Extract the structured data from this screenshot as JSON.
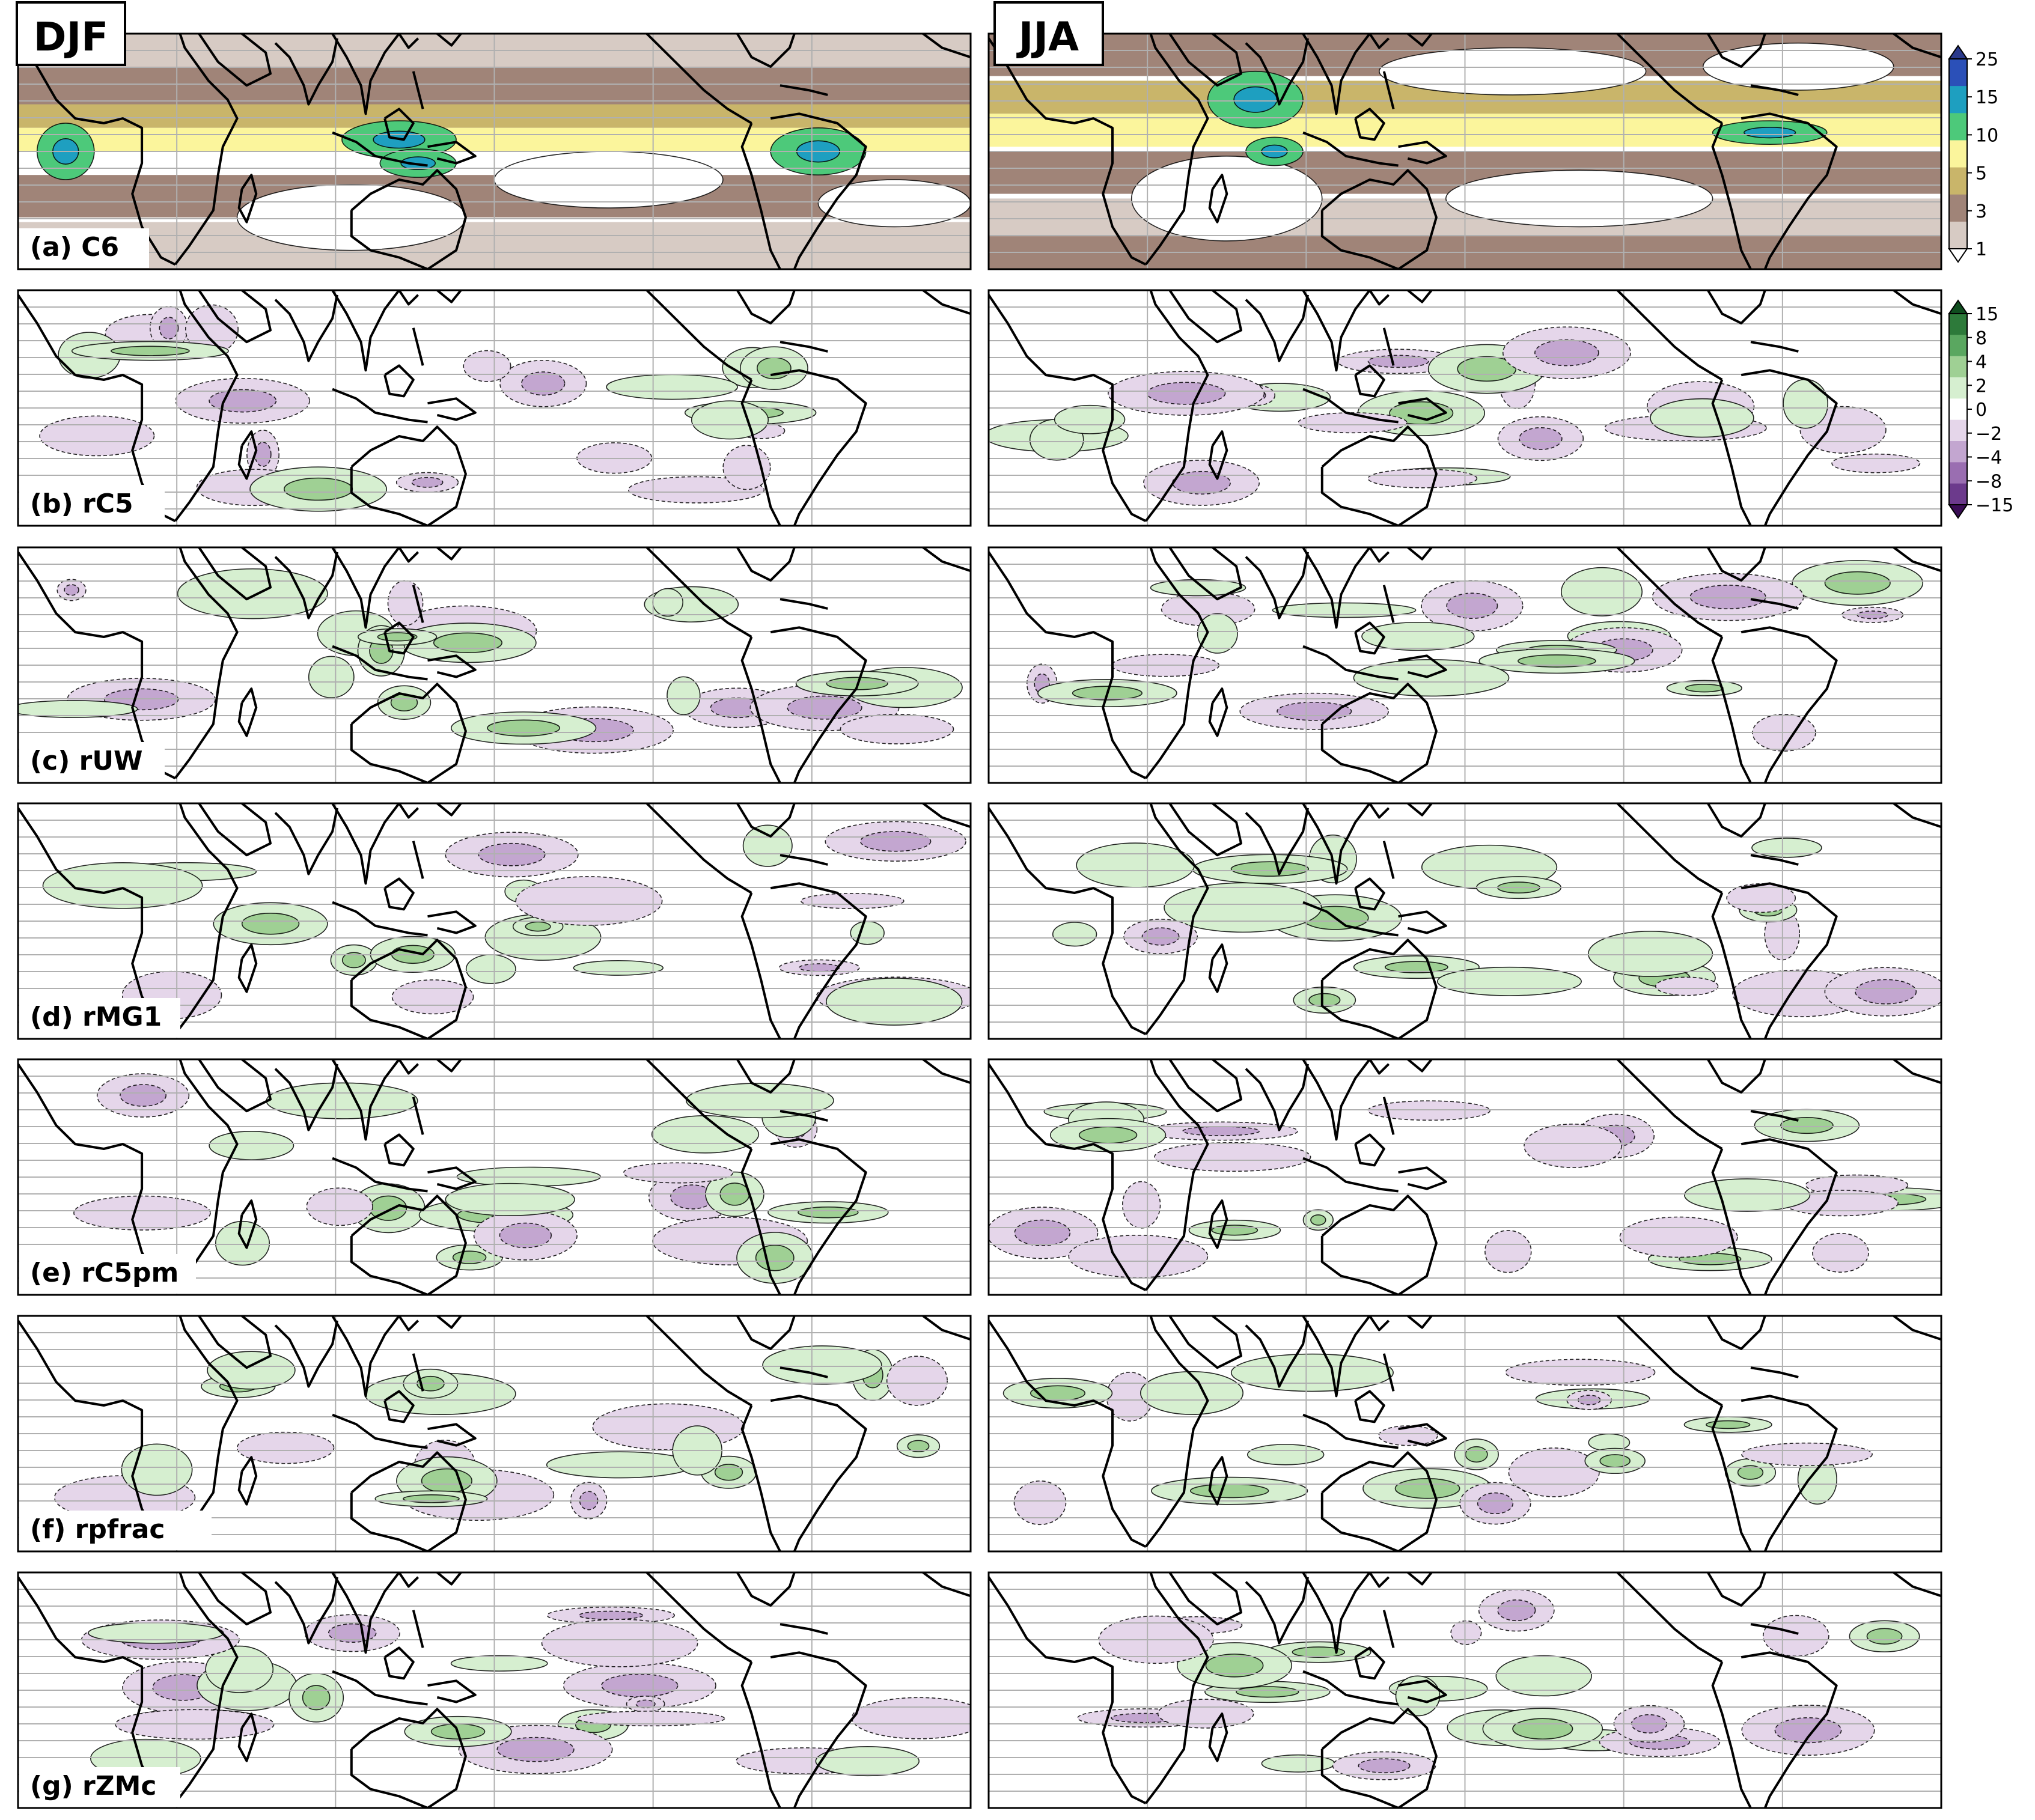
{
  "seasons": [
    "DJF",
    "JJA"
  ],
  "panels": [
    {
      "label": "(a) C6",
      "kind": "absolute"
    },
    {
      "label": "(b) rC5",
      "kind": "difference"
    },
    {
      "label": "(c) rUW",
      "kind": "difference"
    },
    {
      "label": "(d) rMG1",
      "kind": "difference"
    },
    {
      "label": "(e) rC5pm",
      "kind": "difference"
    },
    {
      "label": "(f) rpfrac",
      "kind": "difference"
    },
    {
      "label": "(g) rZMc",
      "kind": "difference"
    }
  ],
  "colorbars": [
    {
      "name": "absolute",
      "ticks": [
        "1",
        "3",
        "5",
        "10",
        "15",
        "25"
      ],
      "colors": [
        "#ffffff",
        "#d7cbc4",
        "#a08478",
        "#c9b56a",
        "#fbf59c",
        "#4dc97a",
        "#1e9fc0",
        "#2b50b8",
        "#2b3a8c"
      ],
      "extend": "both"
    },
    {
      "name": "difference",
      "ticks": [
        "15",
        "8",
        "4",
        "2",
        "0",
        "−2",
        "−4",
        "−8",
        "−15"
      ],
      "colors": [
        "#0f4d1e",
        "#2d7a3a",
        "#5aa760",
        "#9fd094",
        "#d6efd0",
        "#ffffff",
        "#e5d6ea",
        "#c3a6d0",
        "#9a6eb1",
        "#6c3a8c",
        "#3a0d55"
      ],
      "extend": "both"
    }
  ],
  "map": {
    "lon_range": [
      0,
      360
    ],
    "lat_range": [
      -40,
      40
    ],
    "gridline_color": "#b0b0b0",
    "coastline_color": "#000000",
    "colors": {
      "abs_levels": [
        "#d7cbc4",
        "#a08478",
        "#c9b56a",
        "#fbf59c",
        "#4dc97a",
        "#1e9fc0"
      ],
      "pos": "#d6efd0",
      "pos2": "#9fd094",
      "pos3": "#4f9a55",
      "neg": "#e5d6ea",
      "neg2": "#c3a6d0",
      "neg3": "#7e4d9a"
    }
  }
}
